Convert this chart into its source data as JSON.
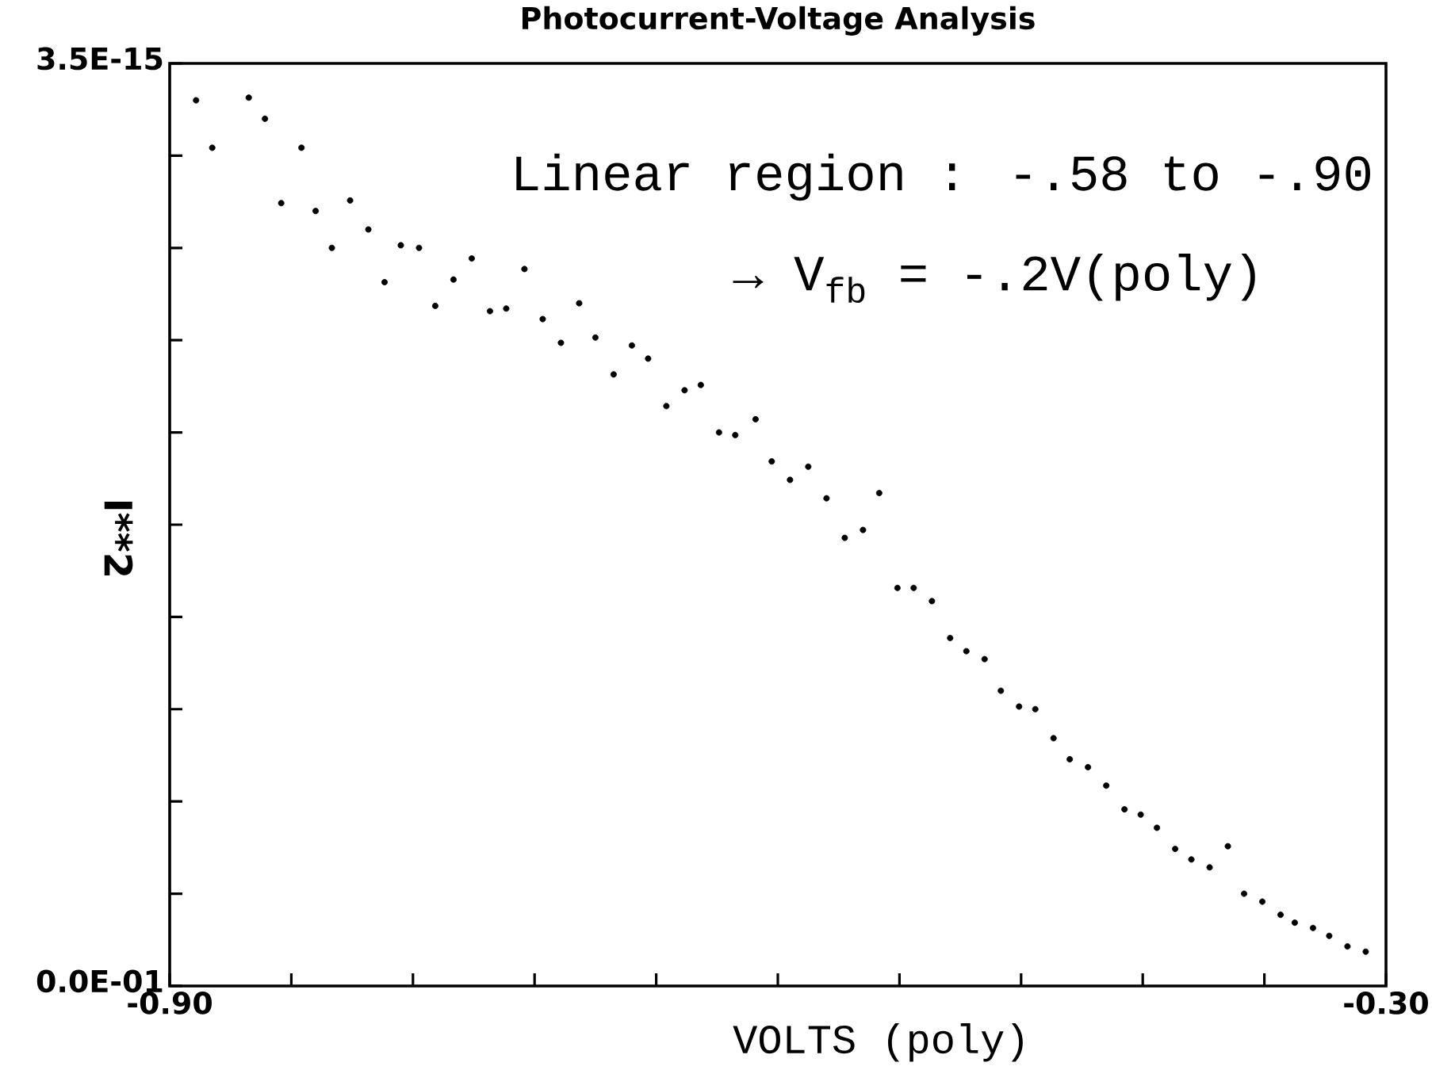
{
  "chart_data": {
    "type": "scatter",
    "title": "Photocurrent-Voltage Analysis",
    "xlabel": "VOLTS (poly)",
    "ylabel": "I**2",
    "annotations": [
      "Linear region : -.58 to -.90",
      "→ V$_{fb}$ = -.2V(poly)"
    ],
    "x": [
      -0.887,
      -0.879,
      -0.861,
      -0.853,
      -0.845,
      -0.835,
      -0.828,
      -0.82,
      -0.811,
      -0.802,
      -0.794,
      -0.786,
      -0.777,
      -0.769,
      -0.76,
      -0.751,
      -0.742,
      -0.734,
      -0.725,
      -0.716,
      -0.707,
      -0.698,
      -0.69,
      -0.681,
      -0.672,
      -0.664,
      -0.655,
      -0.646,
      -0.638,
      -0.629,
      -0.621,
      -0.611,
      -0.603,
      -0.594,
      -0.585,
      -0.576,
      -0.567,
      -0.558,
      -0.55,
      -0.541,
      -0.533,
      -0.524,
      -0.515,
      -0.507,
      -0.498,
      -0.49,
      -0.481,
      -0.473,
      -0.464,
      -0.456,
      -0.447,
      -0.438,
      -0.429,
      -0.421,
      -0.413,
      -0.404,
      -0.396,
      -0.387,
      -0.378,
      -0.37,
      -0.361,
      -0.352,
      -0.345,
      -0.336,
      -0.328,
      -0.319,
      -0.31
    ],
    "series": [
      {
        "color": "#000000",
        "values": [
          3.36e-15,
          3.18e-15,
          3.37e-15,
          3.29e-15,
          2.97e-15,
          3.18e-15,
          2.94e-15,
          2.8e-15,
          2.98e-15,
          2.87e-15,
          2.67e-15,
          2.81e-15,
          2.8e-15,
          2.58e-15,
          2.68e-15,
          2.76e-15,
          2.56e-15,
          2.57e-15,
          2.72e-15,
          2.53e-15,
          2.44e-15,
          2.59e-15,
          2.46e-15,
          2.32e-15,
          2.43e-15,
          2.38e-15,
          2.2e-15,
          2.26e-15,
          2.28e-15,
          2.1e-15,
          2.09e-15,
          2.15e-15,
          1.99e-15,
          1.92e-15,
          1.97e-15,
          1.85e-15,
          1.7e-15,
          1.73e-15,
          1.87e-15,
          1.51e-15,
          1.51e-15,
          1.46e-15,
          1.32e-15,
          1.27e-15,
          1.24e-15,
          1.12e-15,
          1.06e-15,
          1.05e-15,
          9.4e-16,
          8.6e-16,
          8.3e-16,
          7.6e-16,
          6.7e-16,
          6.5e-16,
          6e-16,
          5.2e-16,
          4.8e-16,
          4.5e-16,
          5.3e-16,
          3.5e-16,
          3.2e-16,
          2.7e-16,
          2.4e-16,
          2.2e-16,
          1.9e-16,
          1.5e-16,
          1.3e-16
        ]
      }
    ],
    "xlim": [
      -0.9,
      -0.3
    ],
    "ylim": [
      0,
      3.5e-15
    ],
    "xticks": [
      {
        "value": -0.9,
        "label": "-0.90"
      },
      {
        "value": -0.84,
        "label": null
      },
      {
        "value": -0.78,
        "label": null
      },
      {
        "value": -0.72,
        "label": null
      },
      {
        "value": -0.66,
        "label": null
      },
      {
        "value": -0.6,
        "label": null
      },
      {
        "value": -0.54,
        "label": null
      },
      {
        "value": -0.48,
        "label": null
      },
      {
        "value": -0.42,
        "label": null
      },
      {
        "value": -0.36,
        "label": null
      },
      {
        "value": -0.3,
        "label": "-0.30"
      }
    ],
    "yticks": [
      {
        "value": 0,
        "label": "0.0E-01"
      },
      {
        "value": 3.5e-16,
        "label": null
      },
      {
        "value": 7e-16,
        "label": null
      },
      {
        "value": 1.05e-15,
        "label": null
      },
      {
        "value": 1.4e-15,
        "label": null
      },
      {
        "value": 1.75e-15,
        "label": null
      },
      {
        "value": 2.1e-15,
        "label": null
      },
      {
        "value": 2.45e-15,
        "label": null
      },
      {
        "value": 2.8e-15,
        "label": null
      },
      {
        "value": 3.15e-15,
        "label": null
      },
      {
        "value": 3.5e-15,
        "label": "3.5E-15"
      }
    ],
    "marker": "circle"
  }
}
